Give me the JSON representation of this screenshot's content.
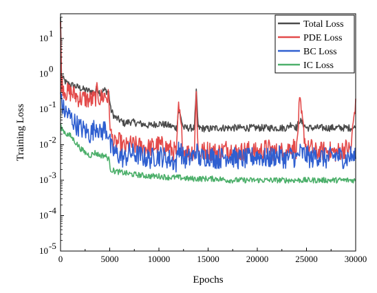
{
  "chart_data": {
    "type": "line",
    "title": "",
    "xlabel": "Epochs",
    "ylabel": "Training Loss",
    "xlim": [
      0,
      30000
    ],
    "ylim_log10": [
      -5,
      1.7
    ],
    "yscale": "log",
    "x_ticks": [
      0,
      5000,
      10000,
      15000,
      20000,
      25000,
      30000
    ],
    "x_tick_labels": [
      "0",
      "5000",
      "10000",
      "15000",
      "20000",
      "25000",
      "30000"
    ],
    "y_ticks_exp": [
      -5,
      -4,
      -3,
      -2,
      -1,
      0,
      1
    ],
    "y_tick_base": "10",
    "grid": false,
    "legend_position": "top-right",
    "series": [
      {
        "name": "Total Loss",
        "color": "#4a4a4a",
        "x": [
          0,
          100,
          300,
          600,
          1000,
          1500,
          2000,
          2500,
          3000,
          3500,
          3700,
          4000,
          4500,
          4900,
          5100,
          5500,
          6000,
          6500,
          7000,
          8000,
          9000,
          10000,
          11000,
          11800,
          12000,
          12500,
          13000,
          13600,
          13800,
          14000,
          15000,
          16000,
          17000,
          18000,
          19000,
          20000,
          21000,
          22000,
          23000,
          23500,
          24000,
          24300,
          25000,
          25500,
          26000,
          27000,
          28000,
          29000,
          29500,
          30000
        ],
        "y": [
          40,
          0.9,
          0.7,
          0.55,
          0.5,
          0.45,
          0.4,
          0.35,
          0.33,
          0.3,
          0.4,
          0.3,
          0.35,
          0.3,
          0.1,
          0.06,
          0.05,
          0.04,
          0.045,
          0.04,
          0.035,
          0.04,
          0.035,
          0.03,
          0.1,
          0.03,
          0.03,
          0.03,
          0.3,
          0.03,
          0.028,
          0.03,
          0.03,
          0.03,
          0.03,
          0.03,
          0.03,
          0.03,
          0.03,
          0.04,
          0.03,
          0.05,
          0.03,
          0.03,
          0.03,
          0.03,
          0.03,
          0.03,
          0.03,
          0.03
        ]
      },
      {
        "name": "PDE Loss",
        "color": "#e34a4a",
        "x": [
          0,
          100,
          300,
          600,
          1000,
          1500,
          2000,
          2500,
          3000,
          3500,
          3700,
          4000,
          4500,
          4900,
          5100,
          5500,
          6000,
          6500,
          7000,
          8000,
          9000,
          10000,
          11000,
          11800,
          12000,
          12500,
          13000,
          13600,
          13800,
          14000,
          15000,
          16000,
          17000,
          18000,
          19000,
          20000,
          21000,
          22000,
          23000,
          23500,
          24000,
          24300,
          25000,
          25500,
          26000,
          27000,
          28000,
          29000,
          29500,
          30000
        ],
        "y": [
          30,
          0.6,
          0.4,
          0.3,
          0.3,
          0.25,
          0.2,
          0.2,
          0.18,
          0.2,
          0.3,
          0.2,
          0.25,
          0.2,
          0.02,
          0.01,
          0.012,
          0.008,
          0.01,
          0.009,
          0.008,
          0.01,
          0.008,
          0.006,
          0.12,
          0.007,
          0.006,
          0.007,
          0.3,
          0.006,
          0.007,
          0.006,
          0.008,
          0.006,
          0.007,
          0.006,
          0.008,
          0.006,
          0.007,
          0.01,
          0.007,
          0.15,
          0.007,
          0.008,
          0.006,
          0.007,
          0.006,
          0.008,
          0.007,
          0.2
        ]
      },
      {
        "name": "BC Loss",
        "color": "#2f5fd0",
        "x": [
          0,
          100,
          300,
          600,
          1000,
          1500,
          2000,
          2500,
          3000,
          3500,
          3700,
          4000,
          4500,
          4900,
          5100,
          5500,
          6000,
          6500,
          7000,
          8000,
          9000,
          10000,
          11000,
          11800,
          12000,
          12500,
          13000,
          13600,
          13800,
          14000,
          15000,
          16000,
          17000,
          18000,
          19000,
          20000,
          21000,
          22000,
          23000,
          23500,
          24000,
          24300,
          25000,
          25500,
          26000,
          27000,
          28000,
          29000,
          29500,
          30000
        ],
        "y": [
          0.3,
          0.15,
          0.1,
          0.08,
          0.06,
          0.04,
          0.03,
          0.025,
          0.02,
          0.03,
          0.04,
          0.02,
          0.03,
          0.02,
          0.008,
          0.006,
          0.005,
          0.004,
          0.006,
          0.005,
          0.004,
          0.005,
          0.004,
          0.003,
          0.01,
          0.004,
          0.004,
          0.005,
          0.008,
          0.004,
          0.005,
          0.004,
          0.005,
          0.004,
          0.004,
          0.005,
          0.004,
          0.005,
          0.004,
          0.005,
          0.004,
          0.006,
          0.005,
          0.004,
          0.005,
          0.004,
          0.005,
          0.004,
          0.005,
          0.004
        ]
      },
      {
        "name": "IC Loss",
        "color": "#4caf6a",
        "x": [
          0,
          100,
          300,
          600,
          1000,
          1500,
          2000,
          2500,
          3000,
          3500,
          4000,
          4500,
          4900,
          5100,
          5500,
          6000,
          7000,
          8000,
          9000,
          10000,
          11000,
          12000,
          13000,
          14000,
          15000,
          16000,
          17000,
          18000,
          19000,
          20000,
          21000,
          22000,
          23000,
          24000,
          25000,
          26000,
          27000,
          28000,
          29000,
          29500,
          30000
        ],
        "y": [
          0.04,
          0.03,
          0.025,
          0.02,
          0.018,
          0.012,
          0.008,
          0.006,
          0.005,
          0.006,
          0.005,
          0.005,
          0.004,
          0.002,
          0.0018,
          0.0017,
          0.0015,
          0.0014,
          0.0013,
          0.0013,
          0.0012,
          0.0012,
          0.0011,
          0.0011,
          0.0011,
          0.0011,
          0.001,
          0.001,
          0.001,
          0.001,
          0.001,
          0.001,
          0.001,
          0.001,
          0.001,
          0.001,
          0.001,
          0.001,
          0.001,
          0.001,
          0.001
        ]
      }
    ]
  }
}
